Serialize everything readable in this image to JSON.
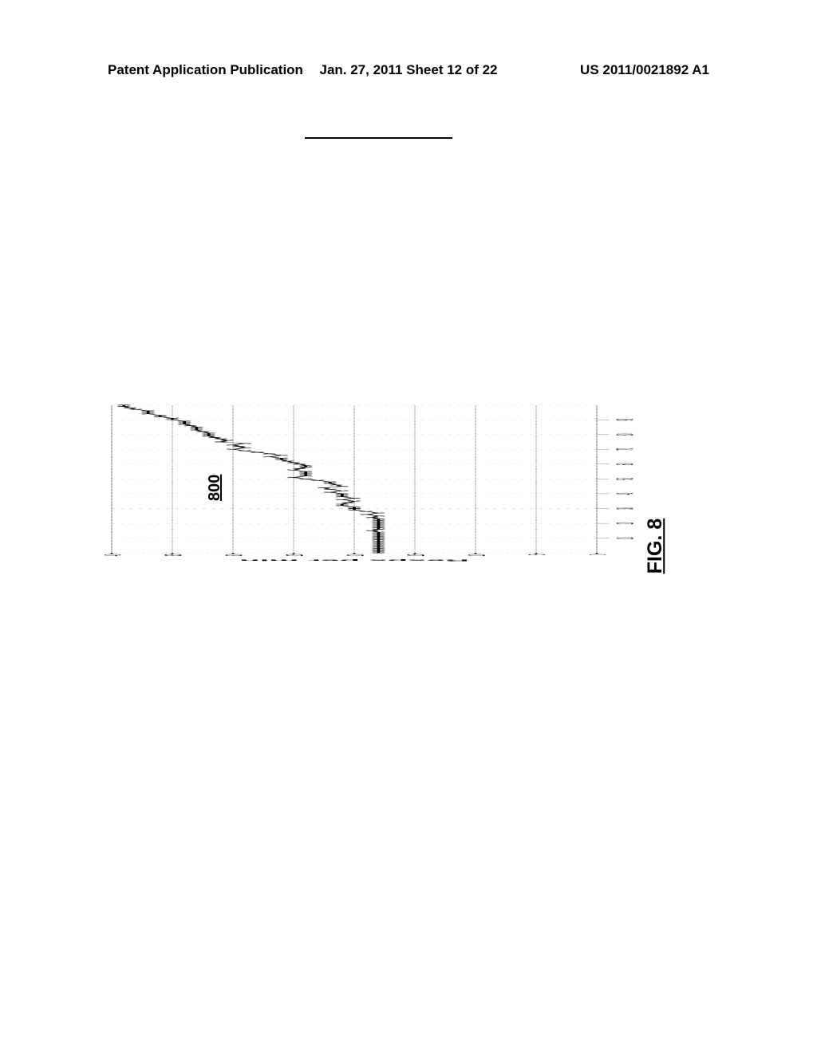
{
  "header": {
    "left": "Patent Application Publication",
    "center": "Jan. 27, 2011  Sheet 12 of 22",
    "right": "US 2011/0021892 A1"
  },
  "figure": {
    "number": "800",
    "label": "FIG. 8"
  },
  "chart": {
    "type": "line",
    "y_label": "Resps per min",
    "y_min": 0,
    "y_max": 40,
    "y_ticks": [
      0,
      5,
      10,
      15,
      20,
      25,
      30,
      35,
      40
    ],
    "x_min": 0,
    "x_max": 100,
    "x_ticks": [
      10,
      20,
      30,
      40,
      50,
      60,
      70,
      80,
      90
    ],
    "line_color": "#000000",
    "marker_style": "x",
    "marker_size": 4,
    "line_width": 1,
    "grid_color": "#888888",
    "grid_style": "dotted",
    "background_color": "#ffffff",
    "data": [
      {
        "x": 0,
        "y": 18
      },
      {
        "x": 1,
        "y": 18
      },
      {
        "x": 2,
        "y": 18
      },
      {
        "x": 3,
        "y": 18
      },
      {
        "x": 4,
        "y": 18
      },
      {
        "x": 5,
        "y": 18
      },
      {
        "x": 6,
        "y": 18
      },
      {
        "x": 7,
        "y": 18
      },
      {
        "x": 8,
        "y": 18
      },
      {
        "x": 9,
        "y": 18
      },
      {
        "x": 10,
        "y": 18
      },
      {
        "x": 11,
        "y": 18
      },
      {
        "x": 12,
        "y": 18
      },
      {
        "x": 13,
        "y": 18
      },
      {
        "x": 14,
        "y": 18
      },
      {
        "x": 15,
        "y": 18.5
      },
      {
        "x": 16,
        "y": 18
      },
      {
        "x": 17,
        "y": 18
      },
      {
        "x": 18,
        "y": 18
      },
      {
        "x": 19,
        "y": 18
      },
      {
        "x": 20,
        "y": 18
      },
      {
        "x": 21,
        "y": 18
      },
      {
        "x": 22,
        "y": 18
      },
      {
        "x": 23,
        "y": 18
      },
      {
        "x": 24,
        "y": 18.5
      },
      {
        "x": 25,
        "y": 18
      },
      {
        "x": 26,
        "y": 19
      },
      {
        "x": 27,
        "y": 18
      },
      {
        "x": 28,
        "y": 19
      },
      {
        "x": 29,
        "y": 20
      },
      {
        "x": 30,
        "y": 20
      },
      {
        "x": 31,
        "y": 20
      },
      {
        "x": 32,
        "y": 21
      },
      {
        "x": 33,
        "y": 21
      },
      {
        "x": 34,
        "y": 20.5
      },
      {
        "x": 35,
        "y": 20
      },
      {
        "x": 36,
        "y": 21
      },
      {
        "x": 37,
        "y": 20
      },
      {
        "x": 38,
        "y": 21
      },
      {
        "x": 39,
        "y": 21
      },
      {
        "x": 40,
        "y": 21
      },
      {
        "x": 41,
        "y": 22
      },
      {
        "x": 42,
        "y": 21
      },
      {
        "x": 43,
        "y": 22
      },
      {
        "x": 44,
        "y": 22.5
      },
      {
        "x": 45,
        "y": 21
      },
      {
        "x": 46,
        "y": 21.5
      },
      {
        "x": 47,
        "y": 22
      },
      {
        "x": 48,
        "y": 22
      },
      {
        "x": 49,
        "y": 23
      },
      {
        "x": 50,
        "y": 24
      },
      {
        "x": 51,
        "y": 25
      },
      {
        "x": 52,
        "y": 24
      },
      {
        "x": 53,
        "y": 24
      },
      {
        "x": 54,
        "y": 24
      },
      {
        "x": 55,
        "y": 24
      },
      {
        "x": 56,
        "y": 25
      },
      {
        "x": 57,
        "y": 24.5
      },
      {
        "x": 58,
        "y": 24
      },
      {
        "x": 59,
        "y": 24
      },
      {
        "x": 60,
        "y": 24.5
      },
      {
        "x": 61,
        "y": 25
      },
      {
        "x": 62,
        "y": 25.5
      },
      {
        "x": 63,
        "y": 26
      },
      {
        "x": 64,
        "y": 26
      },
      {
        "x": 65,
        "y": 27
      },
      {
        "x": 66,
        "y": 26
      },
      {
        "x": 67,
        "y": 27
      },
      {
        "x": 68,
        "y": 28
      },
      {
        "x": 69,
        "y": 29
      },
      {
        "x": 70,
        "y": 30
      },
      {
        "x": 71,
        "y": 29
      },
      {
        "x": 72,
        "y": 29.5
      },
      {
        "x": 73,
        "y": 30
      },
      {
        "x": 74,
        "y": 29
      },
      {
        "x": 75,
        "y": 31
      },
      {
        "x": 76,
        "y": 30.5
      },
      {
        "x": 77,
        "y": 31
      },
      {
        "x": 78,
        "y": 31.5
      },
      {
        "x": 79,
        "y": 32
      },
      {
        "x": 80,
        "y": 32
      },
      {
        "x": 81,
        "y": 32
      },
      {
        "x": 82,
        "y": 32.5
      },
      {
        "x": 83,
        "y": 33
      },
      {
        "x": 84,
        "y": 33
      },
      {
        "x": 85,
        "y": 33
      },
      {
        "x": 86,
        "y": 33.5
      },
      {
        "x": 87,
        "y": 34
      },
      {
        "x": 88,
        "y": 34
      },
      {
        "x": 89,
        "y": 34
      },
      {
        "x": 90,
        "y": 35
      },
      {
        "x": 91,
        "y": 35
      },
      {
        "x": 92,
        "y": 36
      },
      {
        "x": 93,
        "y": 36
      },
      {
        "x": 94,
        "y": 37
      },
      {
        "x": 95,
        "y": 37
      },
      {
        "x": 96,
        "y": 37
      },
      {
        "x": 97,
        "y": 38
      },
      {
        "x": 98,
        "y": 38.5
      },
      {
        "x": 99,
        "y": 39
      },
      {
        "x": 100,
        "y": 39
      }
    ]
  }
}
